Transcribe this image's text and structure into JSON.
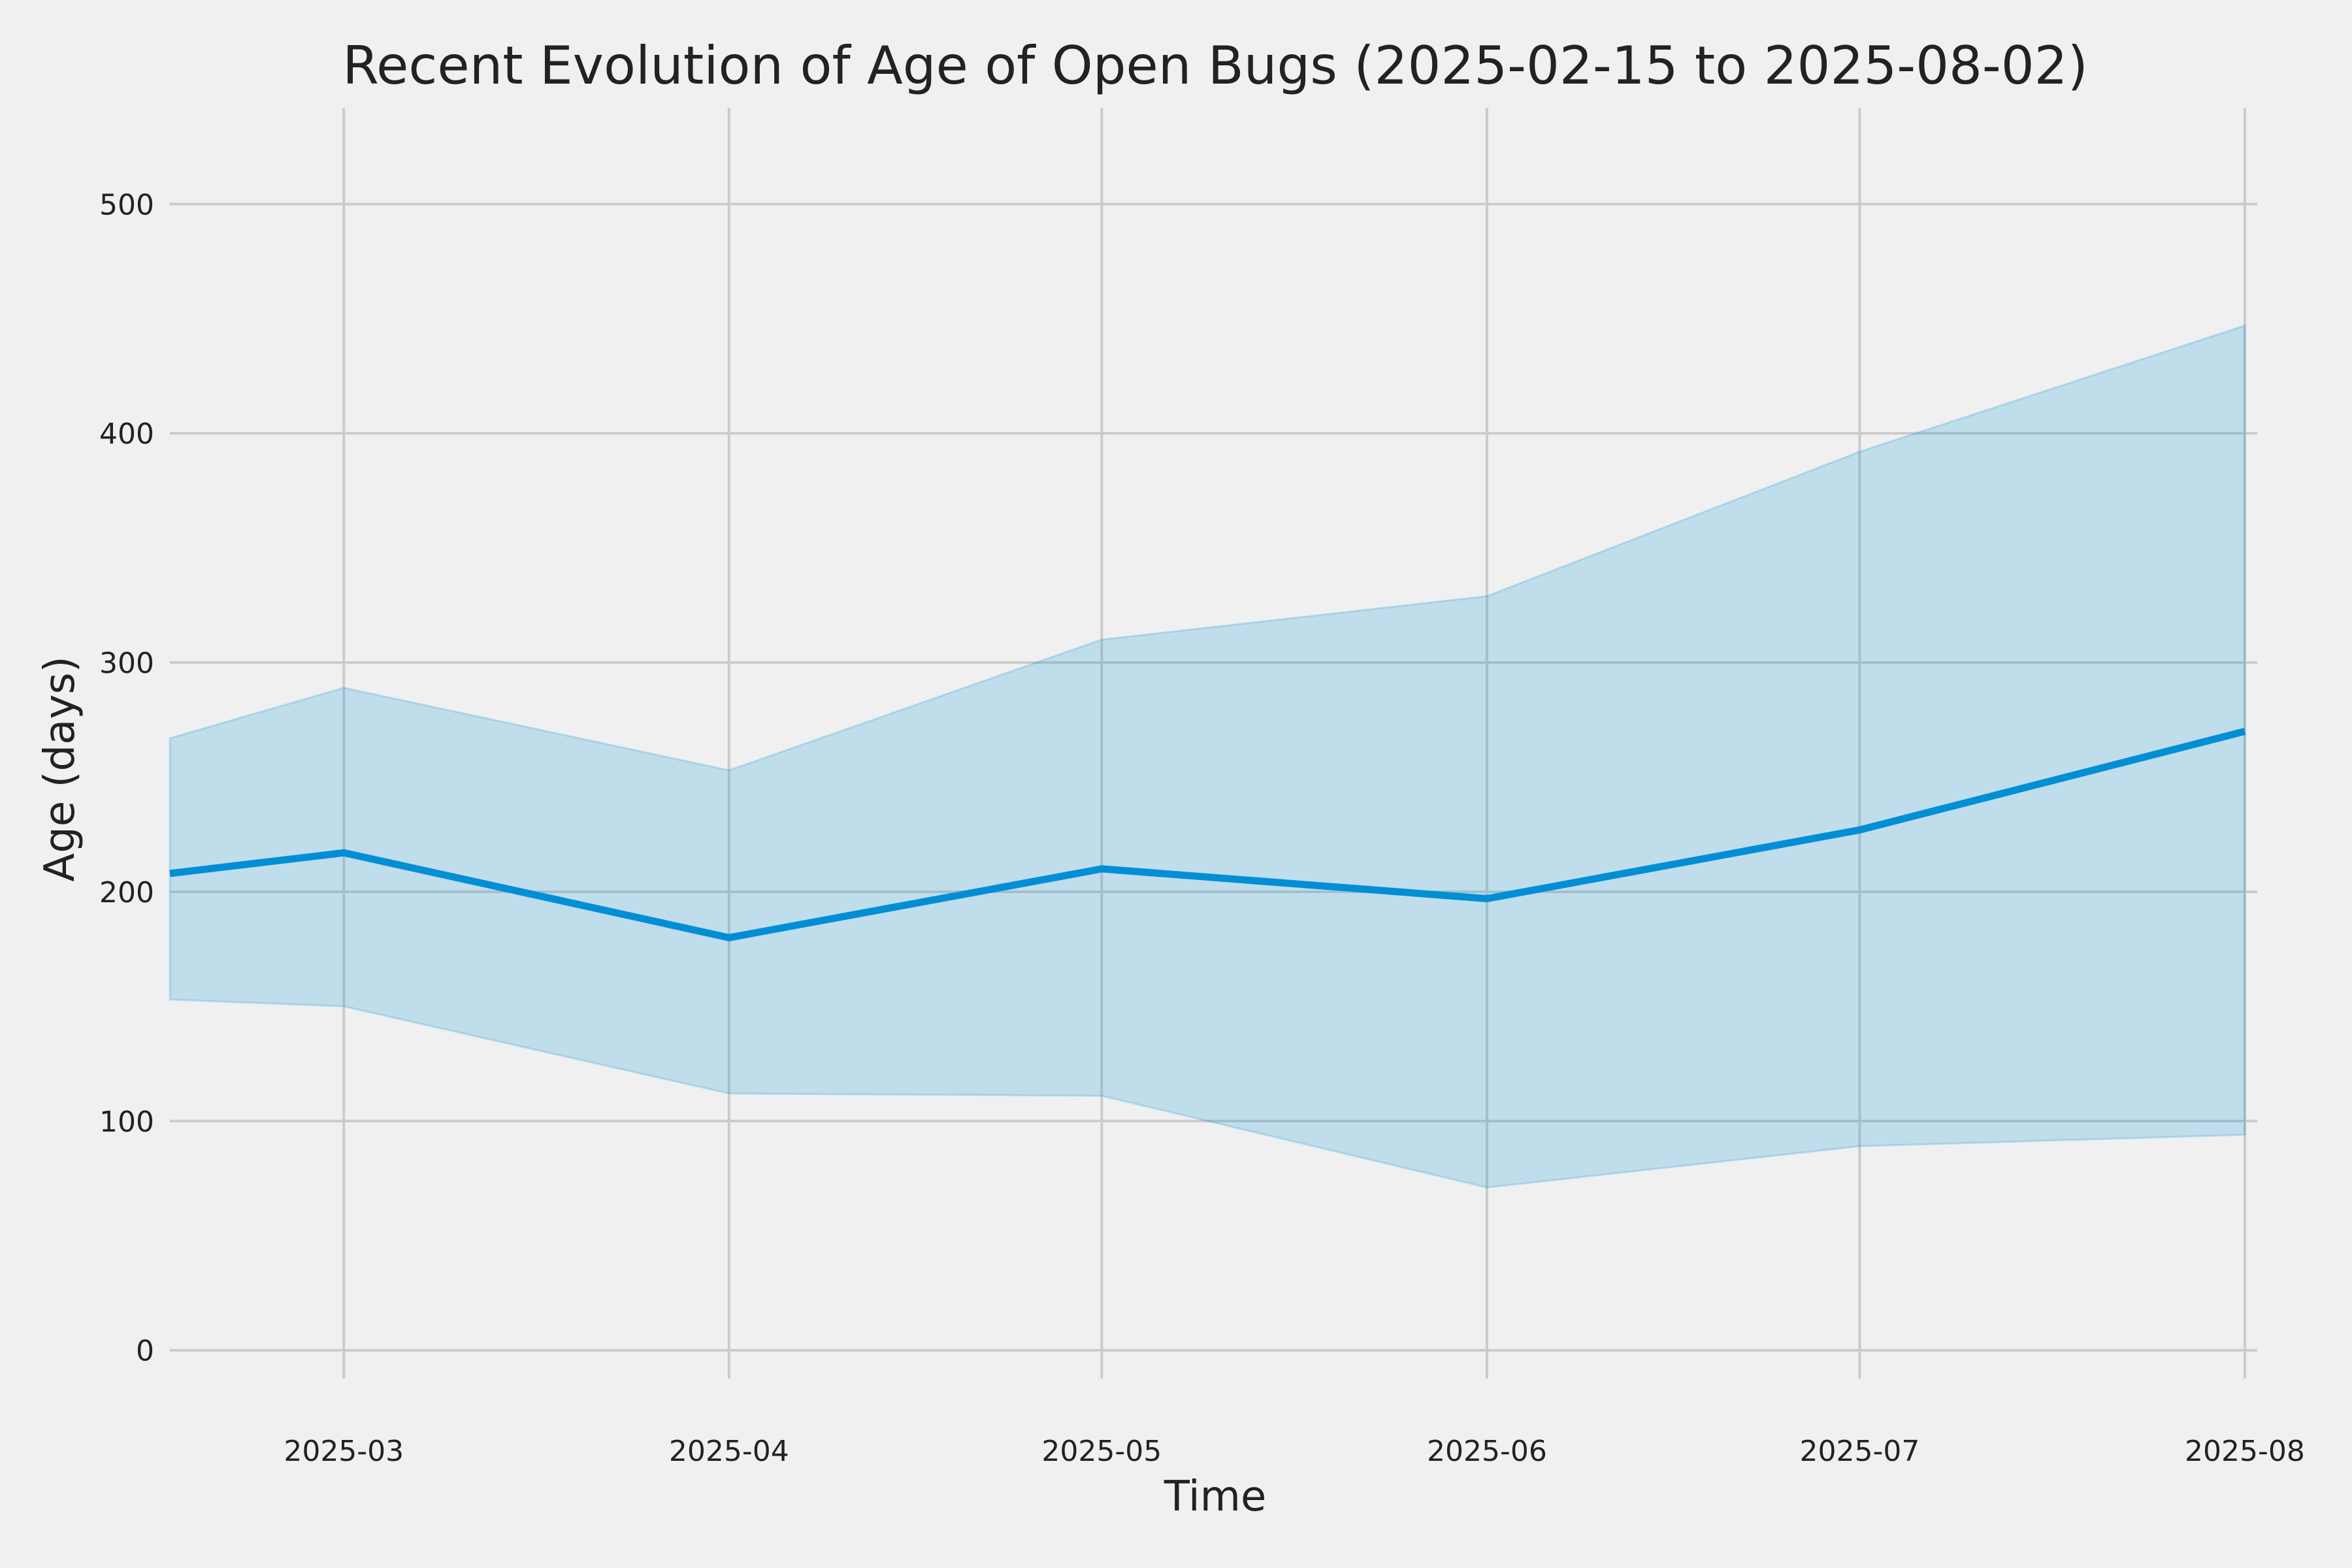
{
  "chart_data": {
    "type": "area",
    "title": "Recent Evolution of Age of Open Bugs (2025-02-15 to 2025-08-02)",
    "xlabel": "Time",
    "ylabel": "Age (days)",
    "x": [
      "2025-02-15",
      "2025-03-01",
      "2025-04-01",
      "2025-05-01",
      "2025-06-01",
      "2025-07-01",
      "2025-08-01"
    ],
    "series": [
      {
        "role": "median",
        "values": [
          208,
          217,
          180,
          210,
          197,
          227,
          270
        ]
      },
      {
        "role": "upper",
        "values": [
          267,
          289,
          253,
          310,
          329,
          392,
          447
        ]
      },
      {
        "role": "lower",
        "values": [
          153,
          150,
          112,
          111,
          71,
          89,
          94
        ]
      }
    ],
    "x_ticks": [
      "2025-03",
      "2025-04",
      "2025-05",
      "2025-06",
      "2025-07",
      "2025-08"
    ],
    "x_tick_dates": [
      "2025-03-01",
      "2025-04-01",
      "2025-05-01",
      "2025-06-01",
      "2025-07-01",
      "2025-08-01"
    ],
    "y_ticks": [
      0,
      100,
      200,
      300,
      400,
      500
    ],
    "xlim": [
      "2025-02-15",
      "2025-08-02"
    ],
    "ylim": [
      -30,
      542
    ],
    "grid": true,
    "colors": {
      "line": "#008fd5",
      "band": "#008fd5",
      "grid": "#cbcbcb",
      "background": "#f0f0f0"
    }
  }
}
